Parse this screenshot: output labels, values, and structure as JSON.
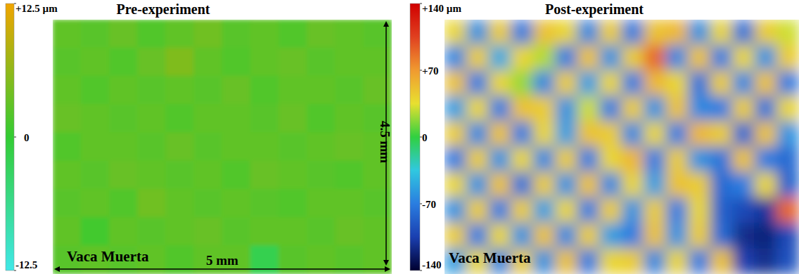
{
  "chart_data": [
    {
      "type": "heatmap",
      "title": "Pre-experiment",
      "annotation": "Vaca Muerta",
      "x_label": "5 mm",
      "y_label": "4.5 mm",
      "colors": [
        "#40e8e8",
        "#33cc33",
        "#f0a500"
      ],
      "colorbar": {
        "range": [
          -12.5,
          12.5
        ],
        "ticks": [
          {
            "value": 12.5,
            "label": "+12.5 µm"
          },
          0,
          -12.5
        ]
      },
      "cells": [
        [
          3,
          2.5,
          3.5,
          2,
          3,
          4,
          2.5,
          3,
          2,
          3.5,
          3,
          2.5
        ],
        [
          2.5,
          3,
          2,
          3.5,
          5,
          3,
          2,
          3,
          3.5,
          2.5,
          3,
          3
        ],
        [
          3,
          2,
          3,
          2.5,
          3,
          2.5,
          3.5,
          2,
          3,
          3,
          2.5,
          3.5
        ],
        [
          3.5,
          3,
          2.5,
          3,
          2,
          3,
          3,
          2.5,
          3.5,
          2,
          3,
          2.5
        ],
        [
          2,
          3,
          3,
          2.5,
          3.5,
          2.5,
          3,
          3,
          2.5,
          3,
          3.5,
          3
        ],
        [
          3,
          2.5,
          3.5,
          3,
          2.5,
          3,
          2,
          3.5,
          3,
          2.5,
          2,
          3
        ],
        [
          2.5,
          3,
          2,
          4,
          3,
          2.5,
          3,
          2.5,
          2,
          3,
          3,
          2.5
        ],
        [
          3,
          1,
          3,
          2.5,
          3,
          3.5,
          2.5,
          3,
          3,
          2.5,
          3.5,
          3
        ],
        [
          2.5,
          3,
          2.5,
          3,
          2,
          3,
          3,
          -2,
          2.5,
          3,
          2.5,
          3
        ]
      ]
    },
    {
      "type": "heatmap",
      "title": "Post-experiment",
      "annotation": "Vaca Muerta",
      "colors": [
        "#000030",
        "#1a3fb0",
        "#2a7de0",
        "#30c8e0",
        "#30d040",
        "#e8e030",
        "#f09a30",
        "#e04020",
        "#d00000"
      ],
      "colorbar": {
        "range": [
          -140,
          140
        ],
        "ticks": [
          {
            "value": 140,
            "label": "+140 µm"
          },
          {
            "value": 70,
            "label": "+70"
          },
          0,
          -70,
          -140
        ]
      },
      "cells": [
        [
          40,
          -60,
          45,
          -70,
          50,
          40,
          -65,
          45,
          -70,
          50,
          55,
          -60,
          40,
          -75,
          45,
          30
        ],
        [
          -65,
          45,
          -50,
          40,
          25,
          -70,
          50,
          -60,
          45,
          90,
          -65,
          50,
          -70,
          40,
          -60,
          45
        ],
        [
          50,
          -70,
          40,
          20,
          -65,
          45,
          -55,
          40,
          -70,
          55,
          40,
          -75,
          45,
          -65,
          50,
          -70
        ],
        [
          -55,
          40,
          -70,
          50,
          45,
          -60,
          30,
          -70,
          45,
          -60,
          50,
          -65,
          -70,
          45,
          -75,
          40
        ],
        [
          45,
          -65,
          50,
          -70,
          40,
          -55,
          50,
          45,
          -65,
          40,
          -70,
          55,
          45,
          -80,
          50,
          -60
        ],
        [
          -70,
          45,
          -60,
          40,
          -65,
          45,
          -70,
          40,
          55,
          -70,
          45,
          -60,
          -75,
          50,
          -70,
          -80
        ],
        [
          40,
          -60,
          50,
          -75,
          45,
          -60,
          50,
          -65,
          40,
          -55,
          50,
          45,
          -80,
          -70,
          40,
          -85
        ],
        [
          -60,
          45,
          -70,
          45,
          -55,
          40,
          -70,
          45,
          -60,
          45,
          -70,
          40,
          -85,
          -100,
          -110,
          90
        ],
        [
          45,
          -70,
          40,
          -60,
          50,
          -65,
          45,
          -55,
          -70,
          50,
          -60,
          45,
          -80,
          -115,
          -120,
          -100
        ],
        [
          -55,
          40,
          -65,
          45,
          -60,
          50,
          -70,
          40,
          45,
          -65,
          40,
          -70,
          50,
          -105,
          -115,
          -95
        ]
      ]
    }
  ]
}
